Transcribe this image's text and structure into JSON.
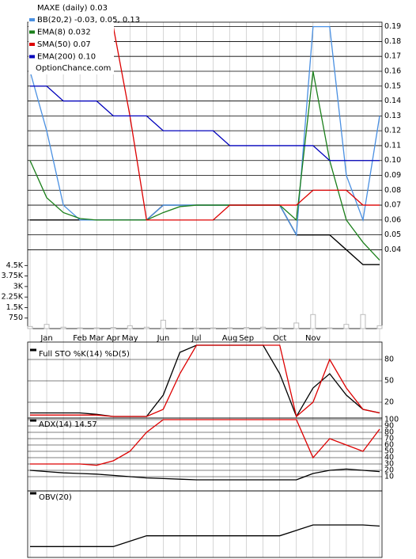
{
  "chart_data": [
    {
      "type": "line",
      "title": "MAXE (daily) 0.03",
      "annotation": "OptionChance.com",
      "categories": [
        null,
        "Jan",
        null,
        "Feb",
        "Mar",
        "Apr",
        "May",
        null,
        "Jun",
        null,
        "Jul",
        null,
        "Aug",
        "Sep",
        null,
        "Oct",
        null,
        "Nov",
        null,
        null,
        null,
        null
      ],
      "close": [
        0.06,
        0.06,
        0.06,
        0.06,
        0.06,
        0.06,
        0.06,
        0.06,
        0.07,
        0.07,
        0.07,
        0.07,
        0.07,
        0.07,
        0.07,
        0.07,
        0.05,
        0.05,
        0.05,
        0.04,
        0.03,
        0.03
      ],
      "close_color": "#000000",
      "series": [
        {
          "name": "BB(20,2) -0.03, 0.05, 0.13",
          "color": "#4a90e2",
          "values": [
            0.16,
            0.12,
            0.07,
            0.06,
            0.06,
            0.06,
            0.06,
            0.06,
            0.07,
            0.07,
            0.07,
            0.07,
            0.07,
            0.07,
            0.07,
            0.07,
            0.05,
            0.19,
            0.19,
            0.09,
            0.06,
            0.13
          ]
        },
        {
          "name": "EMA(8) 0.032",
          "color": "#1a7f1a",
          "values": [
            0.1,
            0.075,
            0.065,
            0.061,
            0.06,
            0.06,
            0.06,
            0.06,
            0.065,
            0.069,
            0.07,
            0.07,
            0.07,
            0.07,
            0.07,
            0.07,
            0.06,
            0.16,
            0.1,
            0.06,
            0.045,
            0.033
          ]
        },
        {
          "name": "SMA(50) 0.07",
          "color": "#dd0000",
          "values": [
            null,
            null,
            null,
            null,
            null,
            0.19,
            0.13,
            0.06,
            0.06,
            0.06,
            0.06,
            0.06,
            0.07,
            0.07,
            0.07,
            0.07,
            0.07,
            0.08,
            0.08,
            0.08,
            0.07,
            0.07
          ]
        },
        {
          "name": "EMA(200) 0.10",
          "color": "#0000bb",
          "values": [
            0.15,
            0.15,
            0.14,
            0.14,
            0.14,
            0.13,
            0.13,
            0.13,
            0.12,
            0.12,
            0.12,
            0.12,
            0.11,
            0.11,
            0.11,
            0.11,
            0.11,
            0.11,
            0.1,
            0.1,
            0.1,
            0.1
          ]
        }
      ],
      "ylim": [
        -0.013,
        0.193
      ],
      "yticks": [
        0.04,
        0.05,
        0.06,
        0.07,
        0.08,
        0.09,
        {
          "value": 0.1,
          "label": "0.10"
        },
        0.11,
        0.12,
        0.13,
        0.14,
        0.15,
        0.16,
        0.17,
        0.18,
        0.19
      ],
      "grid": true
    },
    {
      "type": "bar",
      "color": "#bbbbbb",
      "values": [
        150,
        300,
        100,
        50,
        50,
        80,
        200,
        100,
        600,
        30,
        40,
        50,
        60,
        80,
        100,
        50,
        400,
        1000,
        50,
        300,
        1000,
        200
      ],
      "ylim": [
        0,
        4800
      ],
      "yticks": [
        750,
        {
          "value": 1500,
          "label": "1.5K"
        },
        {
          "value": 2250,
          "label": "2.25K"
        },
        {
          "value": 3000,
          "label": "3K"
        },
        {
          "value": 3750,
          "label": "3.75K"
        },
        {
          "value": 4500,
          "label": "4.5K"
        }
      ]
    },
    {
      "type": "line",
      "title": "Full STO %K(14) %D(5)",
      "series": [
        {
          "color": "#000000",
          "values": [
            5,
            5,
            5,
            5,
            3,
            0,
            0,
            0,
            30,
            90,
            100,
            100,
            100,
            100,
            100,
            60,
            0,
            40,
            60,
            30,
            10,
            5
          ]
        },
        {
          "color": "#dd0000",
          "values": [
            2,
            2,
            2,
            2,
            2,
            0,
            0,
            0,
            10,
            60,
            100,
            100,
            100,
            100,
            100,
            100,
            0,
            20,
            80,
            40,
            10,
            5
          ]
        }
      ],
      "ylim": [
        0,
        100
      ],
      "yticks": [
        20,
        50,
        80
      ]
    },
    {
      "type": "line",
      "title": "ADX(14) 14.57",
      "series": [
        {
          "color": "#dd0000",
          "values": [
            30,
            30,
            30,
            30,
            28,
            35,
            50,
            80,
            100,
            100,
            100,
            100,
            100,
            100,
            100,
            100,
            100,
            40,
            70,
            60,
            50,
            85
          ]
        },
        {
          "color": "#000000",
          "values": [
            20,
            18,
            16,
            15,
            14,
            12,
            10,
            8,
            7,
            6,
            5,
            5,
            5,
            5,
            5,
            5,
            5,
            15,
            20,
            22,
            20,
            18
          ]
        }
      ],
      "ylim": [
        -10,
        100
      ],
      "yticks": [
        10,
        20,
        30,
        40,
        50,
        60,
        70,
        80,
        90,
        100
      ]
    },
    {
      "type": "line",
      "title": "OBV(20)",
      "series": [
        {
          "color": "#000000",
          "values": [
            10,
            10,
            10,
            10,
            10,
            10,
            15,
            20,
            20,
            20,
            20,
            20,
            20,
            20,
            20,
            20,
            25,
            30,
            30,
            30,
            30,
            29
          ]
        }
      ],
      "ylim": [
        0,
        60
      ]
    }
  ]
}
